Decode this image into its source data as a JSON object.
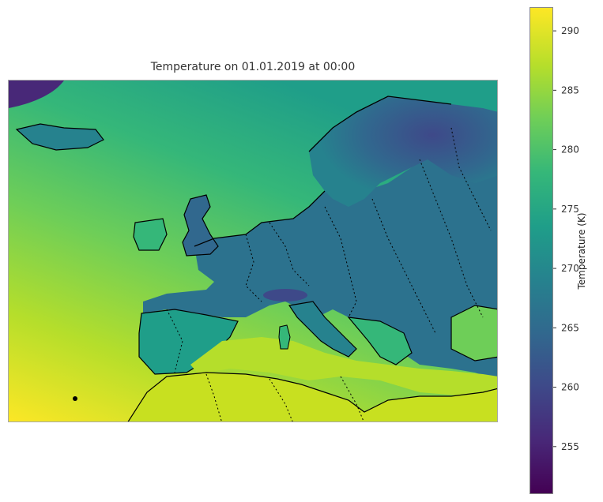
{
  "title": "Temperature on 01.01.2019 at 00:00",
  "colorbar": {
    "label": "Temperature (K)",
    "min": 251,
    "max": 292,
    "ticks": [
      255,
      260,
      265,
      270,
      275,
      280,
      285,
      290
    ],
    "colormap": "viridis"
  },
  "colors": {
    "cold": "#440154",
    "mid": "#26828e",
    "warm": "#fde725",
    "coastline": "#000000"
  },
  "map": {
    "region": "Europe",
    "coastlines": true,
    "borders": "dotted"
  }
}
